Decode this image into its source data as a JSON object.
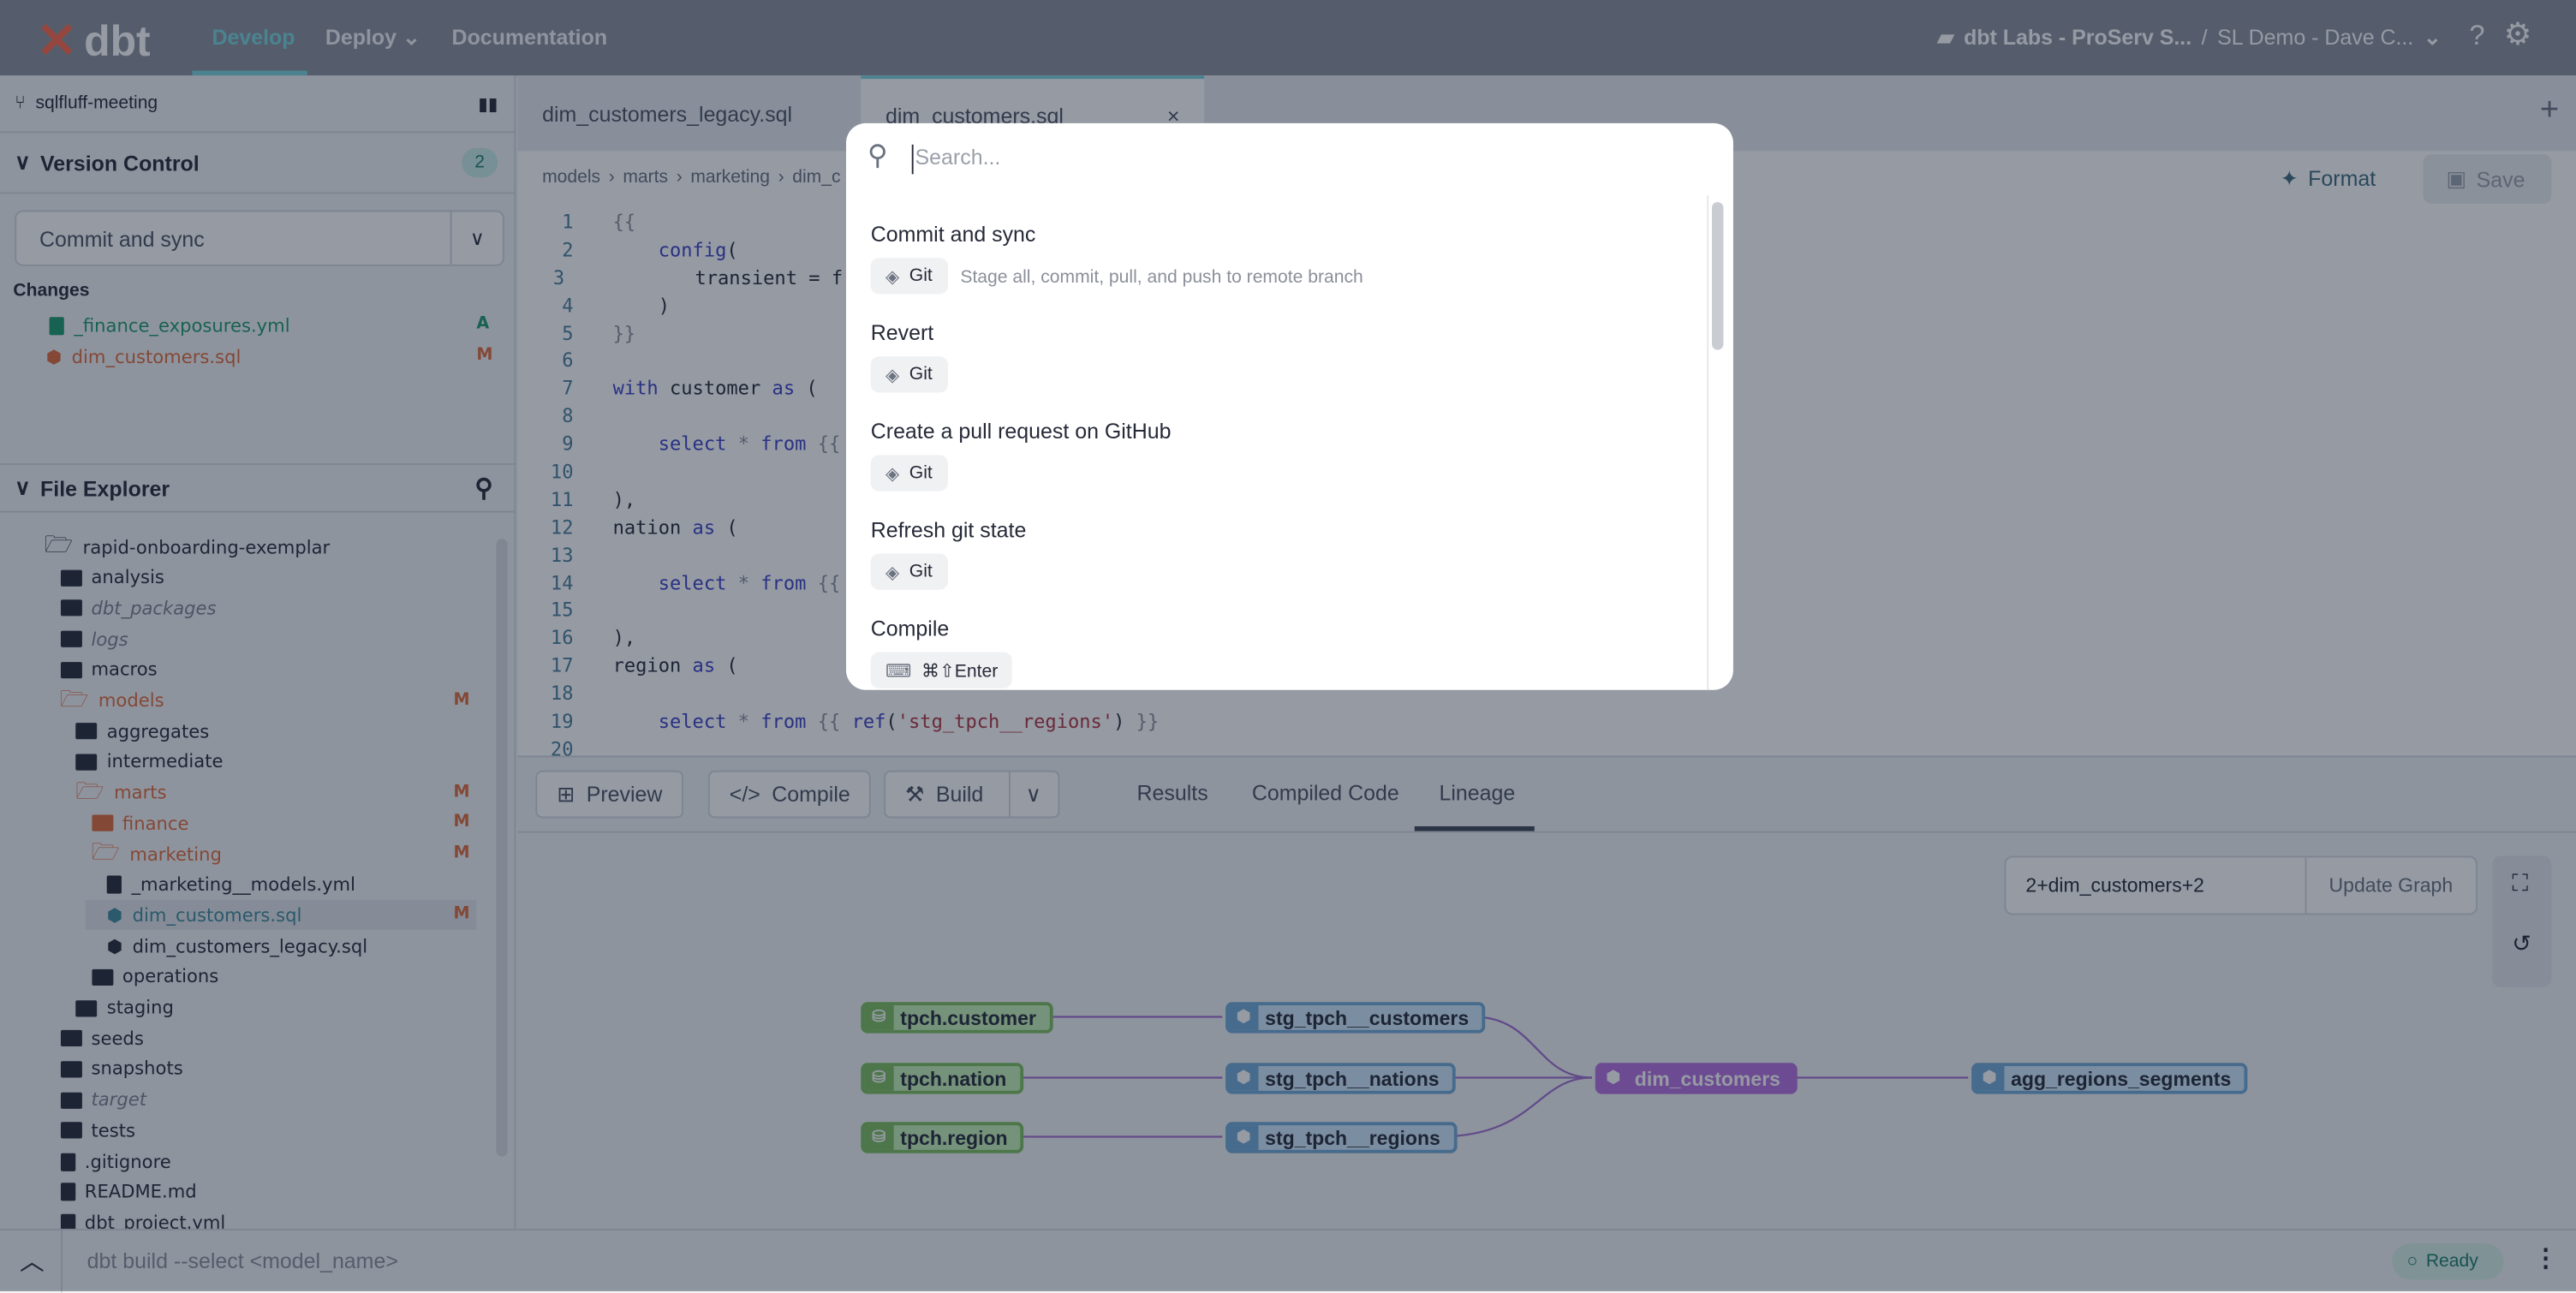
{
  "nav": {
    "brand": "dbt",
    "links": [
      "Develop",
      "Deploy",
      "Documentation"
    ],
    "account": "dbt Labs - ProServ S...",
    "project": "SL Demo - Dave C..."
  },
  "sidebar": {
    "branch": "sqlfluff-meeting",
    "vc_title": "Version Control",
    "vc_count": "2",
    "commit_label": "Commit and sync",
    "changes_label": "Changes",
    "changes": [
      {
        "name": "_finance_exposures.yml",
        "status": "A"
      },
      {
        "name": "dim_customers.sql",
        "status": "M"
      }
    ],
    "fe_title": "File Explorer",
    "tree": [
      {
        "name": "rapid-onboarding-exemplar",
        "type": "open",
        "depth": 0
      },
      {
        "name": "analysis",
        "type": "folder",
        "depth": 1
      },
      {
        "name": "dbt_packages",
        "type": "folder",
        "depth": 1,
        "style": "ital"
      },
      {
        "name": "logs",
        "type": "folder",
        "depth": 1,
        "style": "ital"
      },
      {
        "name": "macros",
        "type": "folder",
        "depth": 1
      },
      {
        "name": "models",
        "type": "open",
        "depth": 1,
        "style": "mod",
        "mark": "M"
      },
      {
        "name": "aggregates",
        "type": "folder",
        "depth": 2
      },
      {
        "name": "intermediate",
        "type": "folder",
        "depth": 2
      },
      {
        "name": "marts",
        "type": "open",
        "depth": 2,
        "style": "mod",
        "mark": "M"
      },
      {
        "name": "finance",
        "type": "folder",
        "depth": 3,
        "style": "mod",
        "mark": "M"
      },
      {
        "name": "marketing",
        "type": "open",
        "depth": 3,
        "style": "mod",
        "mark": "M"
      },
      {
        "name": "_marketing__models.yml",
        "type": "file",
        "depth": 4
      },
      {
        "name": "dim_customers.sql",
        "type": "model",
        "depth": 4,
        "style": "sel",
        "mark": "M"
      },
      {
        "name": "dim_customers_legacy.sql",
        "type": "model",
        "depth": 4
      },
      {
        "name": "operations",
        "type": "folder",
        "depth": 3
      },
      {
        "name": "staging",
        "type": "folder",
        "depth": 2
      },
      {
        "name": "seeds",
        "type": "folder",
        "depth": 1
      },
      {
        "name": "snapshots",
        "type": "folder",
        "depth": 1
      },
      {
        "name": "target",
        "type": "folder",
        "depth": 1,
        "style": "ital"
      },
      {
        "name": "tests",
        "type": "folder",
        "depth": 1
      },
      {
        "name": ".gitignore",
        "type": "file",
        "depth": 1
      },
      {
        "name": "README.md",
        "type": "file",
        "depth": 1
      },
      {
        "name": "dbt_project.yml",
        "type": "file",
        "depth": 1
      }
    ]
  },
  "editor": {
    "tabs": [
      "dim_customers_legacy.sql",
      "dim_customers.sql"
    ],
    "breadcrumb": [
      "models",
      "marts",
      "marketing",
      "dim_c"
    ],
    "format": "Format",
    "save": "Save",
    "lines": [
      [
        [
          "{{",
          "g"
        ]
      ],
      [
        [
          "    ",
          "p"
        ],
        [
          "config",
          "f"
        ],
        [
          "(",
          "p"
        ]
      ],
      [
        [
          "        transient = f",
          "p"
        ]
      ],
      [
        [
          "    )",
          "p"
        ]
      ],
      [
        [
          "}}",
          "g"
        ]
      ],
      [
        [
          "",
          "p"
        ]
      ],
      [
        [
          "with",
          "k"
        ],
        [
          " customer ",
          "p"
        ],
        [
          "as",
          "k"
        ],
        [
          " (",
          "p"
        ]
      ],
      [
        [
          "",
          "p"
        ]
      ],
      [
        [
          "    ",
          "p"
        ],
        [
          "select",
          "k"
        ],
        [
          " * ",
          "g"
        ],
        [
          "from",
          "k"
        ],
        [
          " {{",
          "g"
        ]
      ],
      [
        [
          "",
          "p"
        ]
      ],
      [
        [
          "),",
          "p"
        ]
      ],
      [
        [
          "nation ",
          "p"
        ],
        [
          "as",
          "k"
        ],
        [
          " (",
          "p"
        ]
      ],
      [
        [
          "",
          "p"
        ]
      ],
      [
        [
          "    ",
          "p"
        ],
        [
          "select",
          "k"
        ],
        [
          " * ",
          "g"
        ],
        [
          "from",
          "k"
        ],
        [
          " {{",
          "g"
        ]
      ],
      [
        [
          "",
          "p"
        ]
      ],
      [
        [
          "),",
          "p"
        ]
      ],
      [
        [
          "region ",
          "p"
        ],
        [
          "as",
          "k"
        ],
        [
          " (",
          "p"
        ]
      ],
      [
        [
          "",
          "p"
        ]
      ],
      [
        [
          "    ",
          "p"
        ],
        [
          "select",
          "k"
        ],
        [
          " * ",
          "g"
        ],
        [
          "from",
          "k"
        ],
        [
          " {{ ",
          "g"
        ],
        [
          "ref",
          "f"
        ],
        [
          "(",
          "p"
        ],
        [
          "'stg_tpch__regions'",
          "s"
        ],
        [
          ") ",
          "p"
        ],
        [
          "}}",
          "g"
        ]
      ],
      [
        [
          "",
          "p"
        ]
      ]
    ]
  },
  "panel": {
    "preview": "Preview",
    "compile": "Compile",
    "build": "Build",
    "tabs": [
      "Results",
      "Compiled Code",
      "Lineage"
    ],
    "selector": "2+dim_customers+2",
    "update": "Update Graph",
    "nodes": [
      "tpch.customer",
      "tpch.nation",
      "tpch.region",
      "stg_tpch__customers",
      "stg_tpch__nations",
      "stg_tpch__regions",
      "dim_customers",
      "agg_regions_segments"
    ]
  },
  "status": {
    "command_placeholder": "dbt build --select <model_name>",
    "ready": "Ready"
  },
  "palette": {
    "placeholder": "Search...",
    "items": [
      {
        "title": "Commit and sync",
        "badge": "Git",
        "desc": "Stage all, commit, pull, and push to remote branch"
      },
      {
        "title": "Revert",
        "badge": "Git"
      },
      {
        "title": "Create a pull request on GitHub",
        "badge": "Git"
      },
      {
        "title": "Refresh git state",
        "badge": "Git"
      },
      {
        "title": "Compile",
        "badge": "⌘⇧Enter",
        "icon": "keyboard"
      }
    ]
  },
  "colors": {
    "accent": "#78d6dd",
    "modified": "#e06a3a",
    "source": "#7cc05e",
    "staging": "#6fa9d6",
    "current": "#b56fe0"
  }
}
